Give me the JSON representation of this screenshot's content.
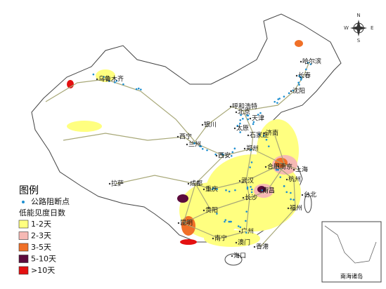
{
  "map": {
    "cities": [
      "乌鲁木齐",
      "哈尔滨",
      "长春",
      "沈阳",
      "呼和浩特",
      "北京",
      "天津",
      "银川",
      "太原",
      "石家庄",
      "济南",
      "西宁",
      "兰州",
      "郑州",
      "西安",
      "合肥",
      "南京",
      "上海",
      "成都",
      "重庆",
      "武汉",
      "杭州",
      "拉萨",
      "南昌",
      "长沙",
      "台北",
      "贵阳",
      "福州",
      "昆明",
      "广州",
      "澳门",
      "香港",
      "南宁",
      "海口"
    ]
  },
  "legend": {
    "title": "图例",
    "point_label": "公路阻断点",
    "point_color": "#1e8fd0",
    "subtitle": "低能见度日数",
    "classes": [
      {
        "label": "1-2天",
        "color": "#ffff80"
      },
      {
        "label": "2-3天",
        "color": "#f6b9b4"
      },
      {
        "label": "3-5天",
        "color": "#f07028"
      },
      {
        "label": "5-10天",
        "color": "#5c0b3c"
      },
      {
        "label": ">10天",
        "color": "#e41010"
      }
    ]
  },
  "compass": {
    "n": "N",
    "e": "E",
    "s": "S",
    "w": "W"
  },
  "inset": {
    "label": "南海诸岛"
  }
}
